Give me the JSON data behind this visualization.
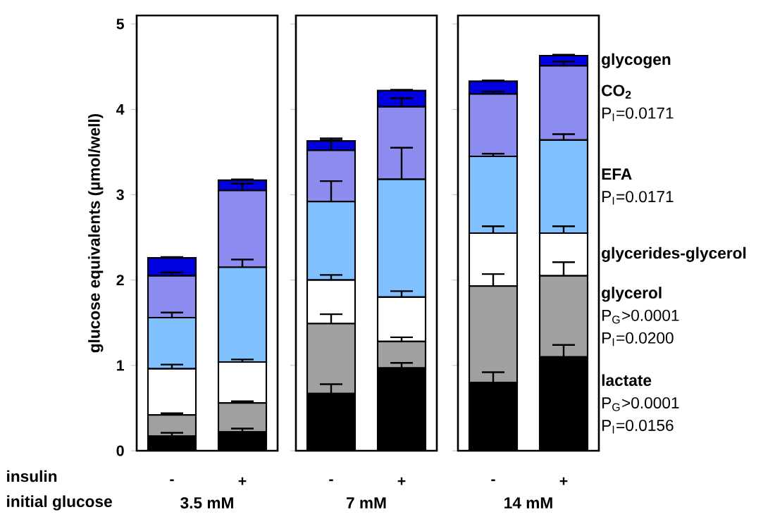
{
  "chart_data": [
    {
      "type": "bar",
      "stacked": true,
      "xlabel": "3.5 mM",
      "ylabel": "glucose equivalents (µmol/well)",
      "categories": [
        "-",
        "+"
      ],
      "ylim": [
        0,
        5.1
      ],
      "yticks": [
        0,
        1,
        2,
        3,
        4,
        5
      ],
      "annotations": [
        "insulin",
        "initial glucose"
      ],
      "series": [
        {
          "color": "#000000",
          "values": [
            0.17,
            0.22
          ],
          "errors": [
            0.04,
            0.04
          ]
        },
        {
          "color": "#a0a0a0",
          "values": [
            0.25,
            0.34
          ],
          "errors": [
            0.02,
            0.02
          ]
        },
        {
          "color": "#ffffff",
          "values": [
            0.54,
            0.48
          ],
          "errors": [
            0.05,
            0.03
          ]
        },
        {
          "color": "#80c0ff",
          "values": [
            0.6,
            1.11
          ],
          "errors": [
            0.06,
            0.09
          ]
        },
        {
          "color": "#8c8cf0",
          "values": [
            0.49,
            0.9
          ],
          "errors": [
            0.04,
            0.08
          ]
        },
        {
          "color": "#0000e0",
          "values": [
            0.21,
            0.12
          ],
          "errors": [
            0.01,
            0.01
          ]
        }
      ]
    },
    {
      "type": "bar",
      "stacked": true,
      "xlabel": "7 mM",
      "categories": [
        "-",
        "+"
      ],
      "ylim": [
        0,
        5.1
      ],
      "yticks": [
        0,
        1,
        2,
        3,
        4,
        5
      ],
      "tick_labels": "x",
      "series": [
        {
          "color": "#000000",
          "values": [
            0.67,
            0.97
          ],
          "errors": [
            0.11,
            0.06
          ]
        },
        {
          "color": "#a0a0a0",
          "values": [
            0.82,
            0.31
          ],
          "errors": [
            0.11,
            0.05
          ]
        },
        {
          "color": "#ffffff",
          "values": [
            0.51,
            0.52
          ],
          "errors": [
            0.06,
            0.07
          ]
        },
        {
          "color": "#80c0ff",
          "values": [
            0.92,
            1.38
          ],
          "errors": [
            0.24,
            0.37
          ]
        },
        {
          "color": "#8c8cf0",
          "values": [
            0.6,
            0.85
          ],
          "errors": [
            0.14,
            0.1
          ]
        },
        {
          "color": "#0000e0",
          "values": [
            0.11,
            0.19
          ],
          "errors": [
            0.01,
            0.01
          ]
        }
      ]
    },
    {
      "type": "bar",
      "stacked": true,
      "xlabel": "14 mM",
      "categories": [
        "-",
        "+"
      ],
      "ylim": [
        0,
        5.1
      ],
      "yticks": [
        0,
        1,
        2,
        3,
        4,
        5
      ],
      "tick_labels": "x",
      "annotations": [
        "P$_{I}$=0.0171",
        "P$_{I}$=0.0171",
        "P$_{G}$>0.0001",
        "P$_{I}$=0.0200",
        "P$_{G}$>0.0001",
        "P$_{I}$=0.0156"
      ],
      "series": [
        {
          "name": "lactate",
          "color": "#000000",
          "values": [
            0.8,
            1.1
          ],
          "errors": [
            0.12,
            0.14
          ]
        },
        {
          "name": "glycerol",
          "color": "#a0a0a0",
          "values": [
            1.13,
            0.95
          ],
          "errors": [
            0.14,
            0.16
          ]
        },
        {
          "name": "glycerides-glycerol",
          "color": "#ffffff",
          "values": [
            0.62,
            0.5
          ],
          "errors": [
            0.08,
            0.08
          ]
        },
        {
          "name": "EFA",
          "color": "#80c0ff",
          "values": [
            0.9,
            1.09
          ],
          "errors": [
            0.03,
            0.07
          ]
        },
        {
          "name": "CO$_{2}$",
          "color": "#8c8cf0",
          "values": [
            0.73,
            0.87
          ],
          "errors": [
            0.03,
            0.05
          ]
        },
        {
          "name": "glycogen",
          "color": "#0000e0",
          "values": [
            0.15,
            0.12
          ],
          "errors": [
            0.01,
            0.01
          ]
        }
      ]
    }
  ]
}
